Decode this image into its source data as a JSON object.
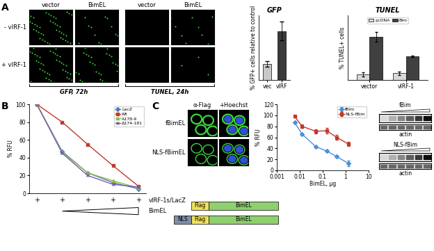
{
  "panel_labels": [
    "A",
    "B",
    "C"
  ],
  "figure_a": {
    "columns": [
      "vector",
      "BimEL",
      "vector",
      "BimEL"
    ],
    "rows": [
      "- vIRF-1",
      "+ vIRF-1"
    ],
    "groups": [
      "GFP, 72h",
      "TUNEL, 24h"
    ]
  },
  "chart_data": [
    {
      "type": "bar",
      "title": "GFP",
      "ylabel": "% GFP+ cells relative to control",
      "categories": [
        "vec",
        "vIRF"
      ],
      "values": [
        11,
        34
      ],
      "errors": [
        2,
        6.5
      ],
      "colors": [
        "#c8c8c8",
        "#3a3a3a"
      ],
      "ylim": [
        0,
        45
      ],
      "tick_labels": "x"
    },
    {
      "type": "bar",
      "title": "TUNEL",
      "ylabel": "% TUNEL+ cells",
      "categories": [
        "vector",
        "vIRF-1"
      ],
      "series": [
        {
          "name": "pcDNA",
          "color": "#d9d9d9",
          "values": [
            3.5,
            4.2
          ],
          "errors": [
            1.2,
            1.0
          ]
        },
        {
          "name": "Bim",
          "color": "#404040",
          "values": [
            26.5,
            14.5
          ],
          "errors": [
            3.0,
            0.5
          ]
        }
      ],
      "ylim": [
        0,
        40
      ],
      "tick_labels": "x",
      "legend": "upper center"
    },
    {
      "type": "line",
      "ylabel": "% RFU",
      "categories": [
        null,
        null,
        null,
        null,
        null
      ],
      "series": [
        {
          "name": "LacZ",
          "color": "#4a7ebb",
          "marker": "diamond",
          "values": [
            100,
            47,
            23,
            12,
            5
          ]
        },
        {
          "name": "Wt",
          "color": "#c0392b",
          "marker": "square",
          "values": [
            100,
            80,
            55,
            31,
            8
          ]
        },
        {
          "name": "A178-9",
          "color": "#8fbc45",
          "marker": "triangle",
          "values": [
            100,
            46,
            23,
            14,
            6
          ]
        },
        {
          "name": "Δ174-181",
          "color": "#7d5ba6",
          "marker": "x",
          "values": [
            100,
            45,
            20,
            10,
            7
          ]
        }
      ],
      "ylim": [
        0,
        100
      ],
      "yticks": [
        0,
        20,
        40,
        60,
        80,
        100
      ],
      "legend": "upper right",
      "x_rows": [
        {
          "label": "vIRF-1s/LacZ",
          "marks": [
            "+",
            "+",
            "+",
            "+",
            "+"
          ]
        },
        {
          "label": "BimEL"
        }
      ]
    },
    {
      "type": "line",
      "xlabel": "BimEL, µg",
      "ylabel": "% RFU",
      "log": "x",
      "series": [
        {
          "name": "fBim",
          "color": "#4a90d9",
          "marker": "diamond",
          "x": [
            0.006,
            0.0125,
            0.05,
            0.15,
            0.4,
            1.3
          ],
          "values": [
            87,
            66,
            43,
            35,
            25,
            13
          ],
          "errors": [
            1,
            1,
            1,
            1,
            1,
            5
          ]
        },
        {
          "name": "NLS-fBim",
          "color": "#c0392b",
          "marker": "square",
          "x": [
            0.006,
            0.0125,
            0.05,
            0.15,
            0.4,
            1.3
          ],
          "values": [
            98,
            80,
            71,
            72,
            60,
            48
          ],
          "errors": [
            2,
            3,
            4,
            5,
            5,
            4
          ]
        }
      ],
      "xlim": [
        0.001,
        10
      ],
      "xticks": [
        {
          "value": 0.001,
          "label": "0.001"
        },
        {
          "value": 0.01,
          "label": "0.01"
        },
        {
          "value": 0.1,
          "label": "0.1"
        },
        1,
        10
      ],
      "ylim": [
        0,
        120
      ],
      "yticks": [
        0,
        20,
        40,
        60,
        80,
        100,
        120
      ],
      "legend": "upper right"
    }
  ],
  "figure_c": {
    "columns": [
      "α-Flag",
      "+Hoechst"
    ],
    "rows": [
      "fBimEL",
      "NLS-fBimEL"
    ],
    "constructs": [
      [
        "Flag",
        "BimEL"
      ],
      [
        "NLS",
        "Flag",
        "BimEL"
      ]
    ],
    "blots": [
      {
        "name": "fBim",
        "control": "actin"
      },
      {
        "name": "NLS-fBim",
        "control": "actin"
      }
    ]
  }
}
